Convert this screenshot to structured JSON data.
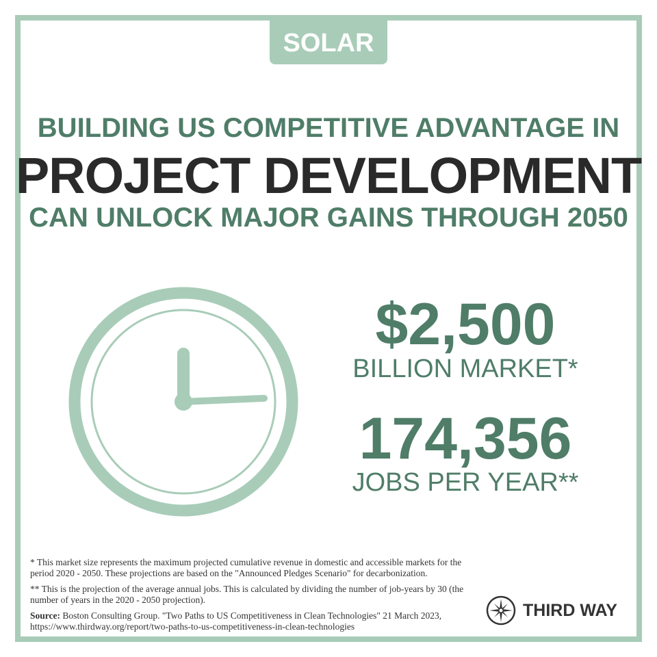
{
  "tag": "SOLAR",
  "headline": {
    "line1": "BUILDING US COMPETITIVE ADVANTAGE IN",
    "line2": "PROJECT DEVELOPMENT",
    "line3": "CAN UNLOCK MAJOR GAINS THROUGH 2050"
  },
  "stats": [
    {
      "value": "$2,500",
      "label": "BILLION MARKET*"
    },
    {
      "value": "174,356",
      "label": "JOBS PER YEAR**"
    }
  ],
  "icon": "clock-icon",
  "footnotes": {
    "note1": "* This market size represents the maximum projected cumulative revenue in domestic and accessible markets for the period 2020 - 2050. These projections are based on the \"Announced Pledges Scenario\" for decarbonization.",
    "note2": "** This is the projection of the average annual jobs. This is calculated by dividing the number of job-years by 30 (the number of years in the 2020 - 2050 projection).",
    "source_label": "Source:",
    "source_text": " Boston Consulting Group. \"Two Paths to US Competitiveness in Clean Technologies\" 21 March 2023, https://www.thirdway.org/report/two-paths-to-us-competitiveness-in-clean-technologies"
  },
  "logo": {
    "text": "THIRD WAY",
    "icon": "compass-icon"
  },
  "colors": {
    "accent_light": "#a8ccb8",
    "accent_dark": "#4f7d68",
    "text_dark": "#2a2a2a"
  }
}
